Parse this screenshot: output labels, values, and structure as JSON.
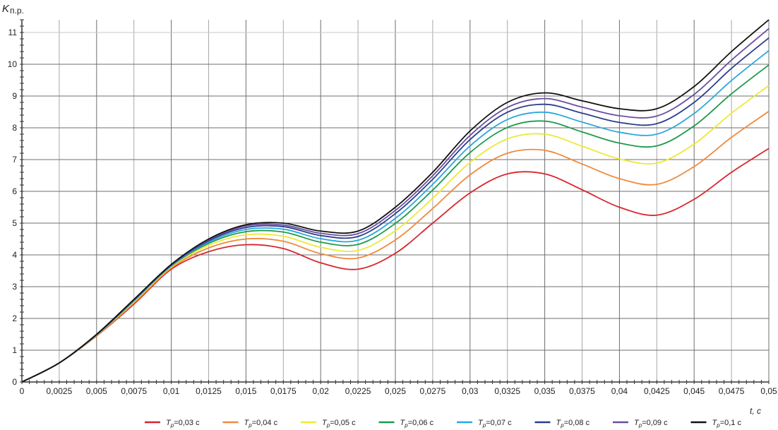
{
  "chart_data": {
    "type": "line",
    "title": "",
    "ylabel": "K",
    "ylabel_sub": "п.р.",
    "xlabel": "t, c",
    "xlim": [
      0,
      0.05
    ],
    "ylim": [
      0,
      11.5
    ],
    "grid": true,
    "legend_position": "bottom",
    "x": [
      0,
      0.0025,
      0.005,
      0.0075,
      0.01,
      0.0125,
      0.015,
      0.0175,
      0.02,
      0.0225,
      0.025,
      0.0275,
      0.03,
      0.0325,
      0.035,
      0.0375,
      0.04,
      0.0425,
      0.045,
      0.0475,
      0.05
    ],
    "x_tick_labels": [
      "0",
      "0,0025",
      "0,005",
      "0,0075",
      "0,01",
      "0,0125",
      "0,015",
      "0,0175",
      "0,02",
      "0,0225",
      "0,025",
      "0,0275",
      "0,03",
      "0,0325",
      "0,035",
      "0,0375",
      "0,04",
      "0,0425",
      "0,045",
      "0,0475",
      "0,05"
    ],
    "y_ticks": [
      0,
      1,
      2,
      3,
      4,
      5,
      6,
      7,
      8,
      9,
      10,
      11
    ],
    "y_tick_labels": [
      "0",
      "1",
      "2",
      "3",
      "4",
      "5",
      "6",
      "7",
      "8",
      "9",
      "10",
      "11"
    ],
    "series": [
      {
        "name": "T=0,03 c",
        "sym": "T",
        "sub": "p",
        "rest": "=0,03 c",
        "color": "#d7262d",
        "values": [
          0,
          0.6,
          1.45,
          2.45,
          3.55,
          4.1,
          4.32,
          4.2,
          3.75,
          3.55,
          4.05,
          5.0,
          5.95,
          6.55,
          6.55,
          6.05,
          5.5,
          5.25,
          5.75,
          6.6,
          7.35
        ]
      },
      {
        "name": "T=0,04 c",
        "sym": "T",
        "sub": "p",
        "rest": "=0,04 c",
        "color": "#f08a3c",
        "values": [
          0,
          0.6,
          1.46,
          2.49,
          3.59,
          4.22,
          4.5,
          4.43,
          4.04,
          3.9,
          4.47,
          5.46,
          6.52,
          7.2,
          7.29,
          6.86,
          6.4,
          6.22,
          6.78,
          7.7,
          8.52
        ]
      },
      {
        "name": "T=0,05 c",
        "sym": "T",
        "sub": "p",
        "rest": "=0,05 c",
        "color": "#ece936",
        "values": [
          0,
          0.6,
          1.47,
          2.52,
          3.62,
          4.3,
          4.63,
          4.59,
          4.24,
          4.14,
          4.76,
          5.78,
          6.91,
          7.65,
          7.8,
          7.42,
          7.02,
          6.89,
          7.49,
          8.46,
          9.33
        ]
      },
      {
        "name": "T=0,06 c",
        "sym": "T",
        "sub": "p",
        "rest": "=0,06 c",
        "color": "#1f9a4c",
        "values": [
          0,
          0.6,
          1.48,
          2.55,
          3.65,
          4.36,
          4.73,
          4.72,
          4.4,
          4.33,
          4.99,
          6.04,
          7.22,
          8.01,
          8.21,
          7.87,
          7.52,
          7.43,
          8.06,
          9.07,
          9.98
        ]
      },
      {
        "name": "T=0,07 c",
        "sym": "T",
        "sub": "p",
        "rest": "=0,07 c",
        "color": "#2aa8dc",
        "values": [
          0,
          0.6,
          1.49,
          2.56,
          3.66,
          4.4,
          4.8,
          4.81,
          4.51,
          4.46,
          5.15,
          6.22,
          7.43,
          8.26,
          8.49,
          8.18,
          7.86,
          7.8,
          8.45,
          9.49,
          10.43
        ]
      },
      {
        "name": "T=0,08 c",
        "sym": "T",
        "sub": "p",
        "rest": "=0,08 c",
        "color": "#2c3f8c",
        "values": [
          0,
          0.6,
          1.49,
          2.58,
          3.68,
          4.44,
          4.86,
          4.89,
          4.61,
          4.58,
          5.3,
          6.38,
          7.63,
          8.49,
          8.74,
          8.46,
          8.17,
          8.13,
          8.8,
          9.87,
          10.83
        ]
      },
      {
        "name": "T=0,09 c",
        "sym": "T",
        "sub": "p",
        "rest": "=0,09 c",
        "color": "#6a4ea0",
        "values": [
          0,
          0.6,
          1.5,
          2.59,
          3.69,
          4.47,
          4.91,
          4.94,
          4.68,
          4.67,
          5.4,
          6.49,
          7.76,
          8.64,
          8.92,
          8.65,
          8.38,
          8.37,
          9.05,
          10.13,
          11.12
        ]
      },
      {
        "name": "T=0,1 c",
        "sym": "T",
        "sub": "p",
        "rest": "=0,1 c",
        "color": "#111111",
        "values": [
          0,
          0.6,
          1.5,
          2.6,
          3.7,
          4.5,
          4.95,
          5.0,
          4.75,
          4.75,
          5.5,
          6.6,
          7.9,
          8.8,
          9.1,
          8.85,
          8.6,
          8.6,
          9.3,
          10.4,
          11.4
        ]
      }
    ]
  }
}
